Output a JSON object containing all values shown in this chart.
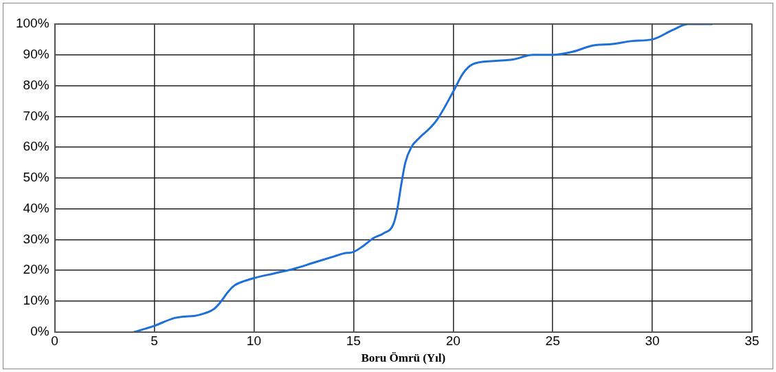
{
  "chart_data": {
    "type": "line",
    "xlabel": "Boru Ömrü (Yıl)",
    "series": [
      {
        "color": "#1f6fd8",
        "x": [
          4,
          5,
          6,
          6.5,
          7,
          7.5,
          8,
          8.3,
          8.7,
          9,
          9.5,
          10,
          11,
          12,
          13,
          14,
          14.5,
          15,
          15.5,
          16,
          16.5,
          17,
          17.2,
          17.4,
          17.6,
          17.9,
          18.3,
          18.8,
          19.2,
          20,
          20.5,
          21,
          22,
          23,
          24,
          25,
          26,
          27,
          28,
          29,
          30,
          31,
          31.8,
          33
        ],
        "values": [
          0,
          2,
          4.5,
          5,
          5.2,
          6,
          7.5,
          9.5,
          13,
          15,
          16.5,
          17.5,
          19,
          20.5,
          22.5,
          24.5,
          25.5,
          26,
          28,
          30.5,
          32,
          35,
          40,
          48,
          55,
          60,
          63,
          66,
          69,
          78,
          84,
          87,
          88,
          88.5,
          90,
          90,
          91,
          93,
          93.5,
          94.5,
          95,
          98,
          100,
          100
        ]
      }
    ],
    "xlim": [
      0,
      35
    ],
    "xticks": [
      0,
      5,
      10,
      15,
      20,
      25,
      30,
      35
    ],
    "ylim": [
      0,
      100
    ],
    "yticks": [
      {
        "value": 0,
        "label": "0%"
      },
      {
        "value": 10,
        "label": "10%"
      },
      {
        "value": 20,
        "label": "20%"
      },
      {
        "value": 30,
        "label": "30%"
      },
      {
        "value": 40,
        "label": "40%"
      },
      {
        "value": 50,
        "label": "50%"
      },
      {
        "value": 60,
        "label": "60%"
      },
      {
        "value": 70,
        "label": "70%"
      },
      {
        "value": 80,
        "label": "80%"
      },
      {
        "value": 90,
        "label": "90%"
      },
      {
        "value": 100,
        "label": "100%"
      }
    ],
    "grid": true,
    "legend": false,
    "marker": "none",
    "line_style": "solid"
  }
}
